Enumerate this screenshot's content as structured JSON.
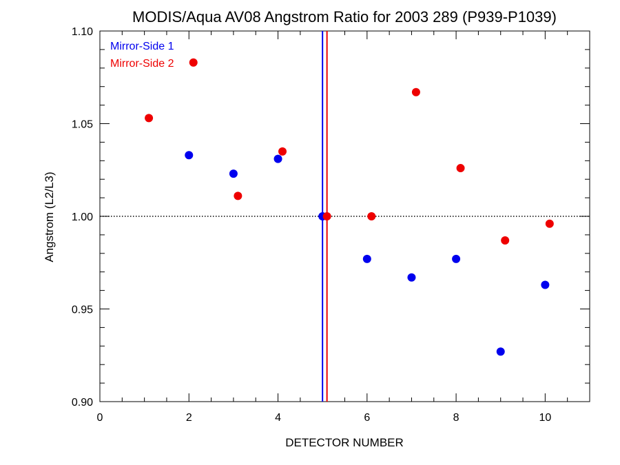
{
  "chart_data": {
    "type": "scatter",
    "title": "MODIS/Aqua AV08 Angstrom Ratio for 2003 289 (P939-P1039)",
    "xlabel": "DETECTOR NUMBER",
    "ylabel": "Angstrom (L2/L3)",
    "xlim": [
      0,
      11
    ],
    "ylim": [
      0.9,
      1.1
    ],
    "x_ticks": [
      "0",
      "2",
      "4",
      "6",
      "8",
      "10"
    ],
    "y_ticks": [
      "0.90",
      "0.95",
      "1.00",
      "1.05",
      "1.10"
    ],
    "reference_line_y": 1.0,
    "vertical_lines": [
      {
        "x": 5.0,
        "color": "#0000ee"
      },
      {
        "x": 5.1,
        "color": "#ee0000"
      }
    ],
    "legend_position": "top-left",
    "series": [
      {
        "name": "Mirror-Side 1",
        "color": "#0000ee",
        "x": [
          2,
          3,
          4,
          5,
          6,
          7,
          8,
          9,
          10
        ],
        "y": [
          1.033,
          1.023,
          1.031,
          1.0,
          0.977,
          0.967,
          0.977,
          0.927,
          0.963
        ]
      },
      {
        "name": "Mirror-Side 2",
        "color": "#ee0000",
        "x": [
          1.1,
          2.1,
          3.1,
          4.1,
          5.1,
          6.1,
          7.1,
          8.1,
          9.1,
          10.1
        ],
        "y": [
          1.053,
          1.083,
          1.011,
          1.035,
          1.0,
          1.0,
          1.067,
          1.026,
          0.987,
          0.996
        ]
      }
    ]
  }
}
